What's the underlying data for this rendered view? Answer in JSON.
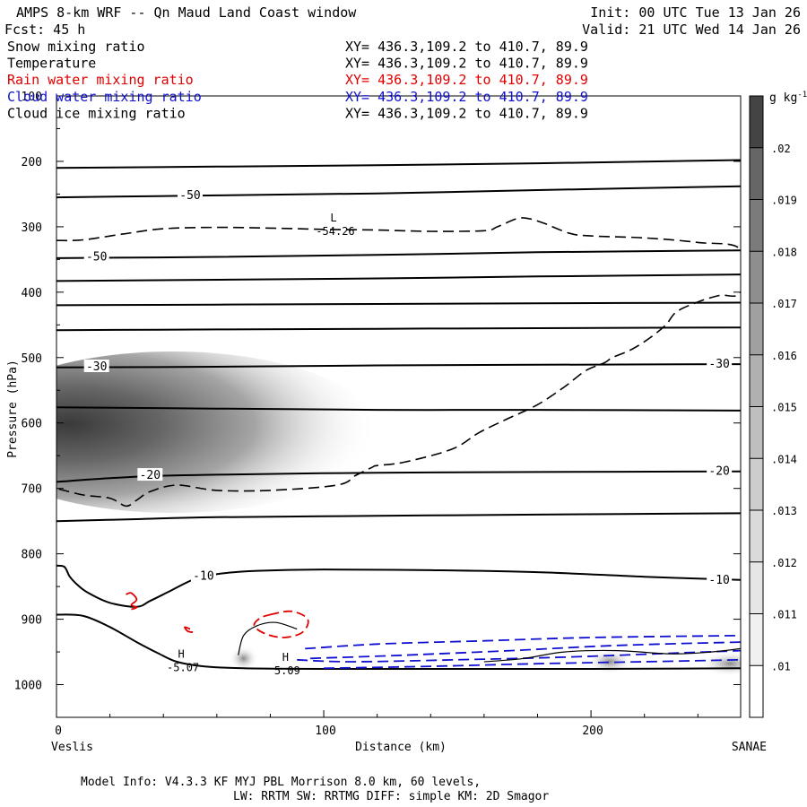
{
  "header": {
    "title": "AMPS 8-km WRF -- Qn Maud Land Coast window",
    "init": "Init: 00 UTC Tue 13 Jan 26",
    "fcst": "Fcst:   45 h",
    "valid": "Valid: 21 UTC Wed 14 Jan 26"
  },
  "legend": [
    {
      "label": "Snow mixing ratio",
      "xy": "XY= 436.3,109.2 to 410.7, 89.9",
      "color": "#000000"
    },
    {
      "label": "Temperature",
      "xy": "XY= 436.3,109.2 to 410.7, 89.9",
      "color": "#000000"
    },
    {
      "label": "Rain water mixing ratio",
      "xy": "XY= 436.3,109.2 to 410.7, 89.9",
      "color": "#e00000"
    },
    {
      "label": "Cloud water mixing ratio",
      "xy": "XY= 436.3,109.2 to 410.7, 89.9",
      "color": "#1010d0"
    },
    {
      "label": "Cloud ice mixing ratio",
      "xy": "XY= 436.3,109.2 to 410.7, 89.9",
      "color": "#000000"
    }
  ],
  "footer": {
    "line1": "Model Info: V4.3.3   KF     MYJ PBL  Morrison             8.0 km,  60 levels,",
    "line2": "LW: RRTM SW: RRTMG   DIFF: simple KM: 2D Smagor"
  },
  "chart_data": {
    "type": "contour",
    "xlabel": "Distance (km)",
    "ylabel": "Pressure (hPa)",
    "xlim": [
      0,
      256
    ],
    "ylim": [
      1050,
      100
    ],
    "xticks": [
      0,
      100,
      200
    ],
    "yticks": [
      100,
      200,
      300,
      400,
      500,
      600,
      700,
      800,
      900,
      1000
    ],
    "start_label": "Veslis",
    "end_label": "SANAE",
    "colorbar": {
      "units": "g kg",
      "units_exp": "-1",
      "levels": [
        ".01",
        ".011",
        ".012",
        ".013",
        ".014",
        ".015",
        ".016",
        ".017",
        ".018",
        ".019",
        ".02"
      ],
      "colors": [
        "#ffffff",
        "#f0f0f0",
        "#e6e6e6",
        "#dadada",
        "#cdcdcd",
        "#bfbfbf",
        "#b0b0b0",
        "#a0a0a0",
        "#8e8e8e",
        "#7b7b7b",
        "#666666",
        "#444444"
      ]
    },
    "temperature_isotherms": [
      {
        "points": [
          [
            0,
            210
          ],
          [
            60,
            208
          ],
          [
            120,
            206
          ],
          [
            180,
            203
          ],
          [
            256,
            198
          ]
        ]
      },
      {
        "points": [
          [
            0,
            255
          ],
          [
            60,
            252
          ],
          [
            120,
            249
          ],
          [
            180,
            244
          ],
          [
            256,
            238
          ]
        ]
      },
      {
        "points": [
          [
            0,
            348
          ],
          [
            60,
            346
          ],
          [
            120,
            343
          ],
          [
            180,
            339
          ],
          [
            256,
            336
          ]
        ]
      },
      {
        "points": [
          [
            0,
            383
          ],
          [
            60,
            381
          ],
          [
            120,
            379
          ],
          [
            180,
            376
          ],
          [
            256,
            373
          ]
        ]
      },
      {
        "points": [
          [
            0,
            420
          ],
          [
            60,
            419
          ],
          [
            120,
            418
          ],
          [
            180,
            417
          ],
          [
            256,
            416
          ]
        ]
      },
      {
        "points": [
          [
            0,
            458
          ],
          [
            60,
            457
          ],
          [
            120,
            456
          ],
          [
            180,
            455
          ],
          [
            256,
            454
          ]
        ]
      },
      {
        "points": [
          [
            0,
            515
          ],
          [
            60,
            514
          ],
          [
            120,
            512
          ],
          [
            180,
            511
          ],
          [
            256,
            510
          ]
        ]
      },
      {
        "points": [
          [
            0,
            576
          ],
          [
            60,
            578
          ],
          [
            120,
            580
          ],
          [
            180,
            580
          ],
          [
            256,
            581
          ]
        ]
      },
      {
        "points": [
          [
            0,
            690
          ],
          [
            30,
            682
          ],
          [
            60,
            679
          ],
          [
            120,
            676
          ],
          [
            180,
            675
          ],
          [
            256,
            674
          ]
        ]
      },
      {
        "points": [
          [
            0,
            750
          ],
          [
            30,
            747
          ],
          [
            60,
            744
          ],
          [
            120,
            742
          ],
          [
            180,
            740
          ],
          [
            256,
            738
          ]
        ]
      },
      {
        "points": [
          [
            0,
            818
          ],
          [
            3,
            820
          ],
          [
            5,
            835
          ],
          [
            8,
            848
          ],
          [
            12,
            860
          ],
          [
            20,
            875
          ],
          [
            30,
            881
          ],
          [
            35,
            872
          ],
          [
            42,
            858
          ],
          [
            52,
            838
          ],
          [
            62,
            830
          ],
          [
            75,
            826
          ],
          [
            100,
            824
          ],
          [
            140,
            825
          ],
          [
            180,
            828
          ],
          [
            220,
            835
          ],
          [
            256,
            840
          ]
        ]
      },
      {
        "points": [
          [
            0,
            893
          ],
          [
            10,
            895
          ],
          [
            20,
            912
          ],
          [
            30,
            935
          ],
          [
            38,
            952
          ],
          [
            45,
            965
          ],
          [
            55,
            972
          ],
          [
            70,
            975
          ],
          [
            100,
            976
          ],
          [
            150,
            976
          ],
          [
            200,
            976
          ],
          [
            256,
            975
          ]
        ]
      }
    ],
    "isotherm_labels": [
      {
        "text": "-50",
        "x": 50,
        "p": 252
      },
      {
        "text": "-50",
        "x": 15,
        "p": 346
      },
      {
        "text": "-30",
        "x": 15,
        "p": 514
      },
      {
        "text": "-30",
        "x": 248,
        "p": 510
      },
      {
        "text": "-20",
        "x": 35,
        "p": 680
      },
      {
        "text": "-20",
        "x": 248,
        "p": 674
      },
      {
        "text": "-10",
        "x": 55,
        "p": 834
      },
      {
        "text": "-10",
        "x": 248,
        "p": 840
      }
    ],
    "extrema": [
      {
        "kind": "L",
        "value": "-54.26",
        "x": 103,
        "p": 300
      },
      {
        "kind": "H",
        "value": "-5.07",
        "x": 46,
        "p": 967
      },
      {
        "kind": "H",
        "value": "5.09",
        "x": 85,
        "p": 972
      }
    ],
    "tropopause_dashed": [
      [
        0,
        321
      ],
      [
        10,
        320
      ],
      [
        25,
        311
      ],
      [
        40,
        303
      ],
      [
        60,
        301
      ],
      [
        80,
        302
      ],
      [
        100,
        304
      ],
      [
        120,
        305
      ],
      [
        140,
        307
      ],
      [
        160,
        306
      ],
      [
        165,
        300
      ],
      [
        172,
        288
      ],
      [
        176,
        287
      ],
      [
        182,
        294
      ],
      [
        192,
        310
      ],
      [
        200,
        314
      ],
      [
        220,
        317
      ],
      [
        240,
        324
      ],
      [
        256,
        335
      ],
      [
        256,
        400
      ],
      [
        248,
        405
      ],
      [
        240,
        415
      ],
      [
        232,
        430
      ],
      [
        228,
        450
      ],
      [
        222,
        470
      ],
      [
        215,
        488
      ],
      [
        208,
        500
      ],
      [
        205,
        508
      ],
      [
        198,
        520
      ],
      [
        190,
        545
      ],
      [
        180,
        572
      ],
      [
        168,
        595
      ],
      [
        158,
        615
      ],
      [
        148,
        640
      ],
      [
        130,
        660
      ],
      [
        120,
        665
      ],
      [
        118,
        668
      ],
      [
        112,
        680
      ],
      [
        105,
        695
      ],
      [
        80,
        703
      ],
      [
        60,
        703
      ],
      [
        45,
        695
      ],
      [
        35,
        705
      ],
      [
        30,
        718
      ],
      [
        26,
        727
      ],
      [
        20,
        715
      ],
      [
        10,
        710
      ],
      [
        0,
        700
      ]
    ],
    "snow_core": {
      "x": 15,
      "p": 625,
      "max": ".02"
    },
    "rain_contours": [
      [
        [
          26,
          862
        ],
        [
          28,
          860
        ],
        [
          30,
          870
        ],
        [
          28,
          878
        ],
        [
          30,
          882
        ],
        [
          28,
          885
        ]
      ],
      [
        [
          50,
          915
        ],
        [
          48,
          912
        ],
        [
          49,
          918
        ],
        [
          51,
          920
        ]
      ],
      [
        [
          80,
          893
        ],
        [
          88,
          888
        ],
        [
          94,
          900
        ],
        [
          92,
          920
        ],
        [
          85,
          928
        ],
        [
          78,
          922
        ],
        [
          74,
          910
        ],
        [
          76,
          899
        ]
      ]
    ],
    "cloud_water_contours": [
      [
        [
          93,
          945
        ],
        [
          120,
          938
        ],
        [
          160,
          933
        ],
        [
          200,
          928
        ],
        [
          256,
          925
        ]
      ],
      [
        [
          95,
          960
        ],
        [
          130,
          955
        ],
        [
          170,
          948
        ],
        [
          210,
          940
        ],
        [
          256,
          935
        ]
      ],
      [
        [
          90,
          962
        ],
        [
          110,
          965
        ],
        [
          150,
          962
        ],
        [
          190,
          958
        ],
        [
          230,
          952
        ],
        [
          256,
          948
        ]
      ],
      [
        [
          100,
          975
        ],
        [
          140,
          972
        ],
        [
          180,
          968
        ],
        [
          220,
          965
        ],
        [
          256,
          962
        ]
      ]
    ],
    "cloud_ice_contours": [
      [
        [
          68,
          955
        ],
        [
          70,
          925
        ],
        [
          75,
          910
        ],
        [
          82,
          905
        ],
        [
          90,
          915
        ]
      ],
      [
        [
          160,
          965
        ],
        [
          175,
          960
        ],
        [
          190,
          950
        ],
        [
          210,
          948
        ],
        [
          230,
          953
        ],
        [
          245,
          950
        ],
        [
          256,
          945
        ]
      ]
    ]
  }
}
